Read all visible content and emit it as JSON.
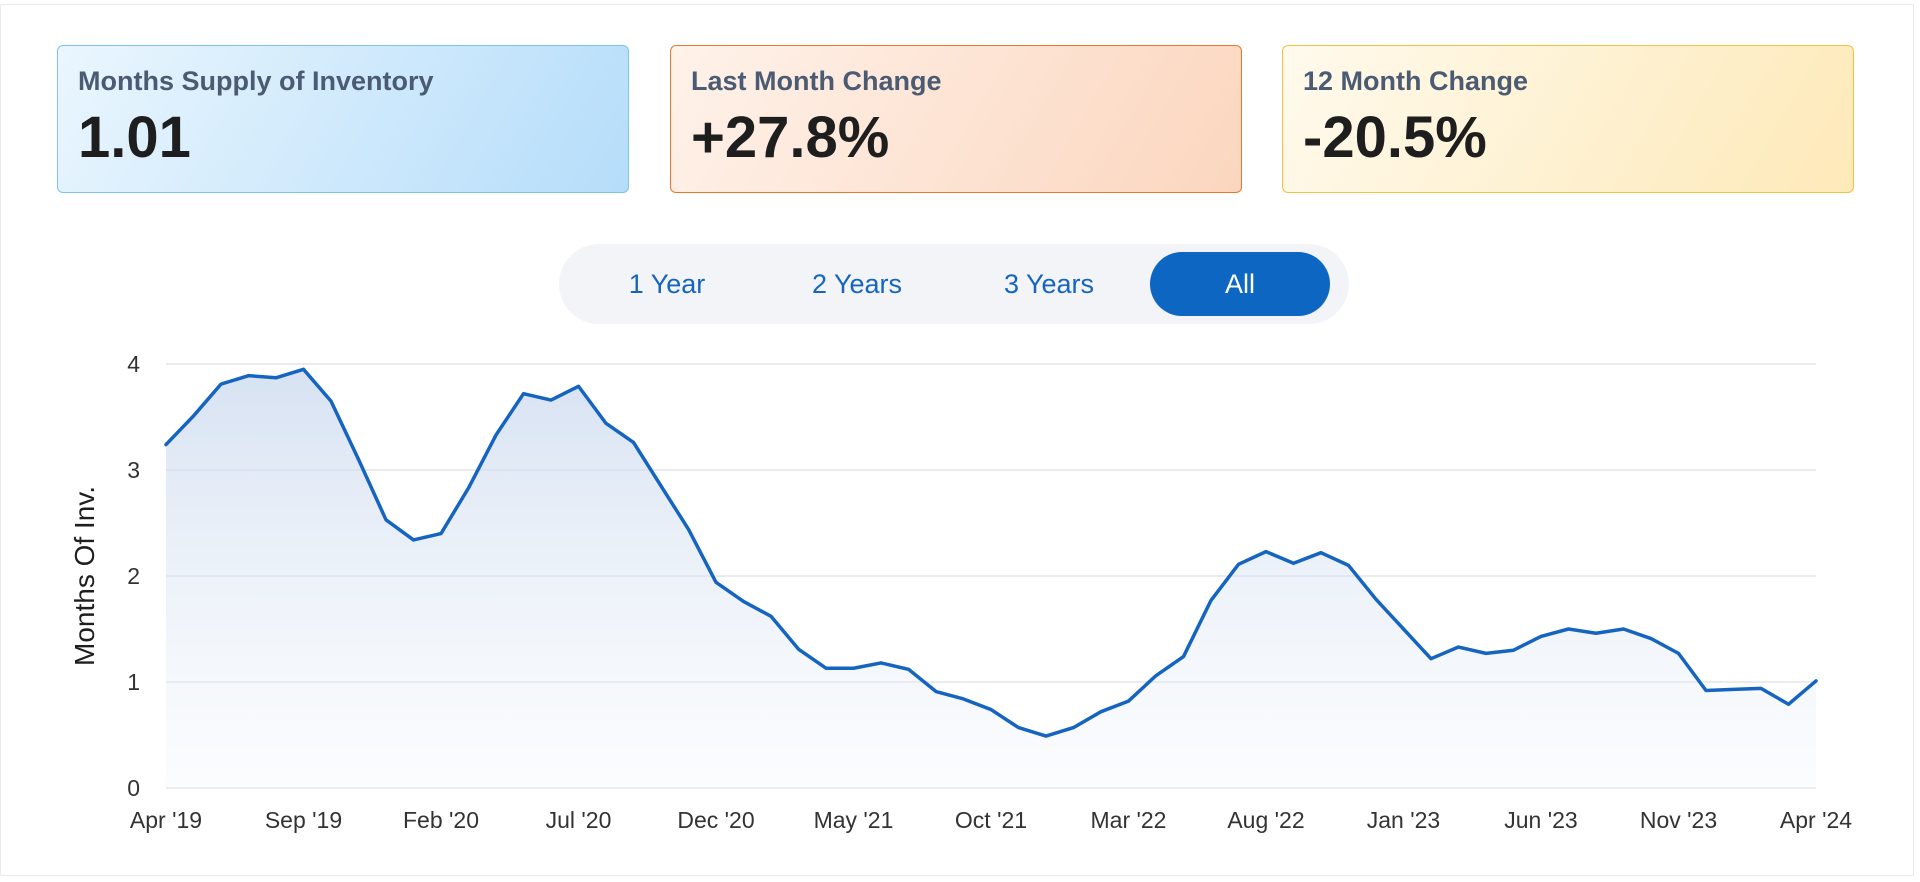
{
  "cards": [
    {
      "label": "Months Supply of Inventory",
      "value": "1.01"
    },
    {
      "label": "Last Month Change",
      "value": "+27.8%"
    },
    {
      "label": "12 Month Change",
      "value": "-20.5%"
    }
  ],
  "range": {
    "options": [
      "1 Year",
      "2 Years",
      "3 Years",
      "All"
    ],
    "selected": "All"
  },
  "colors": {
    "line": "#1565c0",
    "active_button": "#0d66c2",
    "card_blue_border": "#7cc3ef",
    "card_orange_border": "#e8782d",
    "card_yellow_border": "#f3c240"
  },
  "chart_data": {
    "type": "area",
    "ylabel": "Months Of Inv.",
    "ylim": [
      0,
      4
    ],
    "yticks": [
      0,
      1,
      2,
      3,
      4
    ],
    "grid": true,
    "xtick_labels": [
      "Apr '19",
      "Sep '19",
      "Feb '20",
      "Jul '20",
      "Dec '20",
      "May '21",
      "Oct '21",
      "Mar '22",
      "Aug '22",
      "Jan '23",
      "Jun '23",
      "Nov '23",
      "Apr '24"
    ],
    "x_start": "Apr '19",
    "x_end": "Apr '24",
    "series": [
      {
        "values": [
          3.24,
          3.51,
          3.81,
          3.89,
          3.87,
          3.95,
          3.65,
          3.1,
          2.53,
          2.34,
          2.4,
          2.83,
          3.33,
          3.72,
          3.66,
          3.79,
          3.44,
          3.26,
          2.85,
          2.44,
          1.94,
          1.76,
          1.62,
          1.31,
          1.13,
          1.13,
          1.18,
          1.12,
          0.91,
          0.84,
          0.74,
          0.57,
          0.49,
          0.57,
          0.72,
          0.82,
          1.06,
          1.24,
          1.77,
          2.11,
          2.23,
          2.12,
          2.22,
          2.1,
          1.78,
          1.5,
          1.22,
          1.33,
          1.27,
          1.3,
          1.43,
          1.5,
          1.46,
          1.5,
          1.41,
          1.27,
          0.92,
          0.93,
          0.94,
          0.79,
          1.01
        ]
      }
    ]
  }
}
